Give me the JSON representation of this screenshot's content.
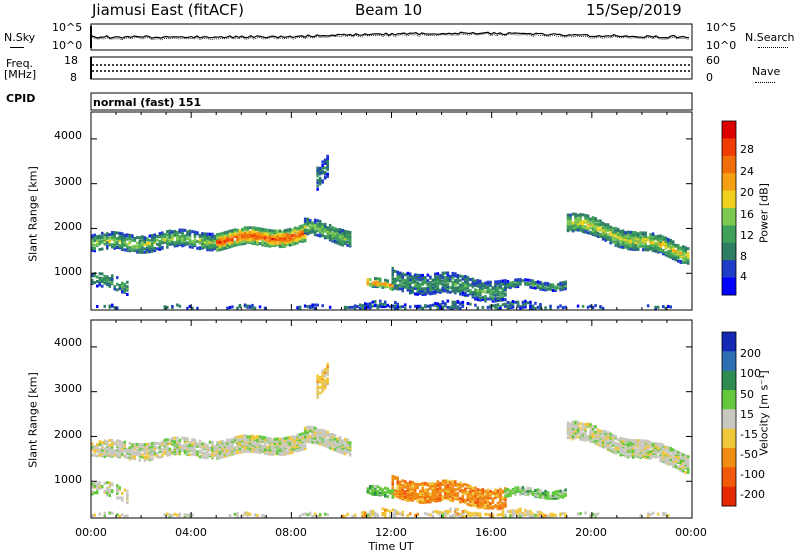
{
  "header": {
    "station": "Jiamusi East (fitACF)",
    "beam": "Beam 10",
    "date": "15/Sep/2019"
  },
  "strip_labels": {
    "nsky": "N.Sky",
    "nsearch": "N.Search",
    "freq_top": "Freq.",
    "freq_unit": "[MHz]",
    "cpid": "CPID",
    "nave": "Nave",
    "cpid_value": "normal (fast) 151"
  },
  "strip_ticks": {
    "noise_left": [
      "10^5",
      "10^0"
    ],
    "noise_right": [
      "10^5",
      "10^0"
    ],
    "freq_left": [
      "18",
      "8"
    ],
    "nave_right": [
      "60",
      "0"
    ]
  },
  "chart_data": [
    {
      "type": "heatmap",
      "name": "power",
      "ylabel": "Slant Range [km]",
      "ylim": [
        180,
        4600
      ],
      "yticks": [
        1000,
        2000,
        3000,
        4000
      ],
      "xlim": [
        0,
        24
      ],
      "colorbar": {
        "label": "Power [dB]",
        "ticks": [
          "4",
          "8",
          "12",
          "16",
          "20",
          "24",
          "28"
        ],
        "colors": [
          "#0000ff",
          "#1e3cc8",
          "#2e7d64",
          "#3fa05a",
          "#7cc850",
          "#f0d21e",
          "#f5a014",
          "#f06e0a",
          "#f03c00",
          "#dc0000"
        ]
      }
    },
    {
      "type": "heatmap",
      "name": "velocity",
      "ylabel": "Slant Range [km]",
      "ylim": [
        180,
        4600
      ],
      "yticks": [
        1000,
        2000,
        3000,
        4000
      ],
      "xlim": [
        0,
        24
      ],
      "xticks": [
        "00:00",
        "04:00",
        "08:00",
        "12:00",
        "16:00",
        "20:00",
        "00:00"
      ],
      "xlabel": "Time UT",
      "colorbar": {
        "label": "Velocity [m s⁻¹]",
        "ticks": [
          "200",
          "100",
          "50",
          "15",
          "-15",
          "-50",
          "-100",
          "-200"
        ],
        "colors": [
          "#1428b4",
          "#2e6eb4",
          "#2e8c50",
          "#64c83c",
          "#c8c8c0",
          "#f0c83c",
          "#f08c14",
          "#f05a0a",
          "#e62800"
        ]
      }
    }
  ]
}
